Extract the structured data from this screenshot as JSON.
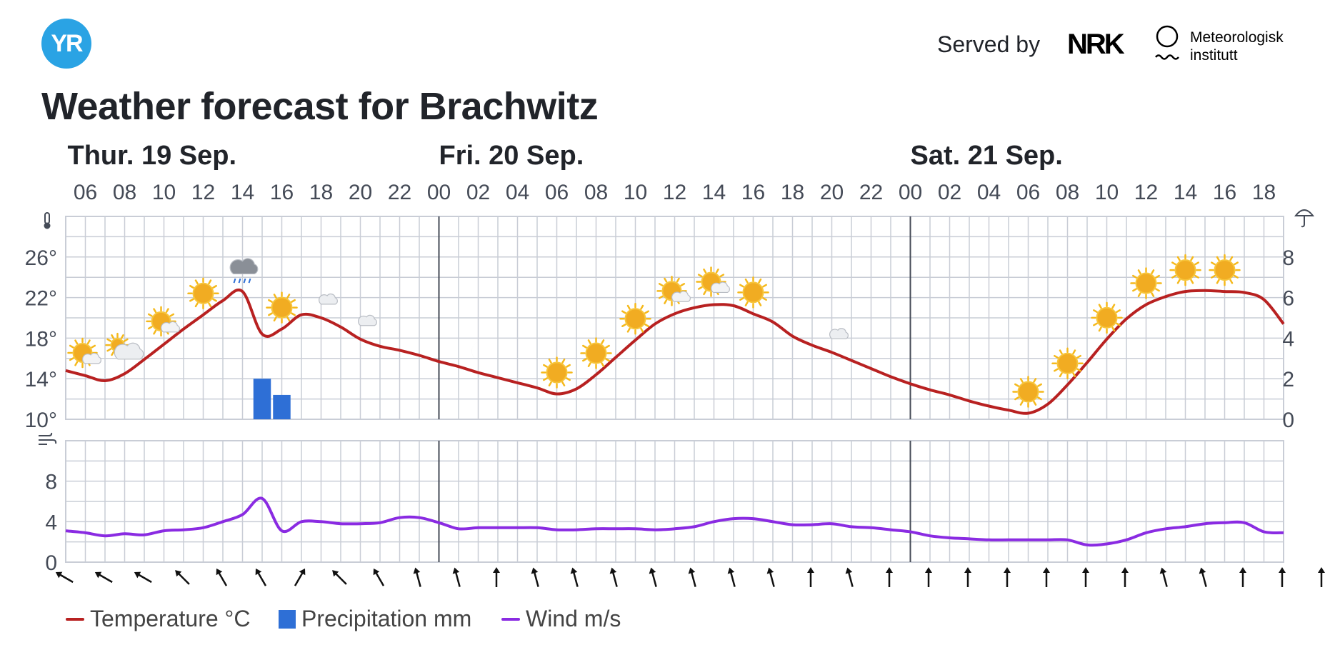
{
  "header": {
    "logo_text": "YR",
    "served_by": "Served by",
    "nrk_logo_text": "NRK",
    "met_logo_text": "Meteorologisk institutt",
    "met_line1": "Meteorologisk",
    "met_line2": "institutt",
    "title": "Weather forecast for Brachwitz"
  },
  "colors": {
    "temperature": "#b82121",
    "precipitation": "#2e6fd6",
    "wind": "#8a2be2",
    "grid": "#c9cdd6",
    "day_divider": "#454b57",
    "label": "#454b57",
    "logo": "#2aa3e4"
  },
  "legend": {
    "temperature": "Temperature °C",
    "precipitation": "Precipitation mm",
    "wind": "Wind m/s"
  },
  "chart_data": {
    "type": "line",
    "days": [
      {
        "label": "Thur. 19 Sep.",
        "start_hour_index": 0
      },
      {
        "label": "Fri. 20 Sep.",
        "start_hour_index": 19
      },
      {
        "label": "Sat. 21 Sep.",
        "start_hour_index": 43
      }
    ],
    "hours": [
      "05",
      "06",
      "07",
      "08",
      "09",
      "10",
      "11",
      "12",
      "13",
      "14",
      "15",
      "16",
      "17",
      "18",
      "19",
      "20",
      "21",
      "22",
      "23",
      "00",
      "01",
      "02",
      "03",
      "04",
      "05",
      "06",
      "07",
      "08",
      "09",
      "10",
      "11",
      "12",
      "13",
      "14",
      "15",
      "16",
      "17",
      "18",
      "19",
      "20",
      "21",
      "22",
      "23",
      "00",
      "01",
      "02",
      "03",
      "04",
      "05",
      "06",
      "07",
      "08",
      "09",
      "10",
      "11",
      "12",
      "13",
      "14",
      "15",
      "16",
      "17",
      "18",
      "19"
    ],
    "hour_tick_labels": [
      "06",
      "08",
      "10",
      "12",
      "14",
      "16",
      "18",
      "20",
      "22",
      "00",
      "02",
      "04",
      "06",
      "08",
      "10",
      "12",
      "14",
      "16",
      "18",
      "20",
      "22",
      "00",
      "02",
      "04",
      "06",
      "08",
      "10",
      "12",
      "14",
      "16",
      "18"
    ],
    "temperature_axis": {
      "min": 10,
      "max": 30,
      "ticks": [
        10,
        14,
        18,
        22,
        26
      ],
      "unit": "°"
    },
    "precipitation_axis": {
      "min": 0,
      "max": 10,
      "ticks": [
        0,
        2,
        4,
        6,
        8
      ]
    },
    "wind_axis": {
      "min": 0,
      "max": 12,
      "ticks": [
        0,
        4,
        8
      ]
    },
    "series": [
      {
        "name": "Temperature °C",
        "values": [
          14.8,
          14.3,
          13.8,
          14.5,
          15.9,
          17.4,
          18.9,
          20.3,
          21.7,
          22.6,
          18.4,
          18.9,
          20.3,
          20.0,
          19.1,
          17.9,
          17.2,
          16.8,
          16.3,
          15.7,
          15.2,
          14.6,
          14.1,
          13.6,
          13.1,
          12.5,
          13.0,
          14.4,
          16.1,
          17.8,
          19.4,
          20.4,
          21.0,
          21.3,
          21.2,
          20.4,
          19.6,
          18.2,
          17.3,
          16.6,
          15.8,
          15.0,
          14.2,
          13.5,
          12.9,
          12.4,
          11.8,
          11.3,
          10.9,
          10.6,
          11.5,
          13.4,
          15.6,
          17.9,
          19.9,
          21.3,
          22.1,
          22.6,
          22.7,
          22.6,
          22.5,
          21.8,
          19.4
        ]
      },
      {
        "name": "Precipitation mm",
        "values": [
          0,
          0,
          0,
          0,
          0,
          0,
          0,
          0,
          0,
          0,
          2.0,
          1.2,
          0,
          0,
          0,
          0,
          0,
          0,
          0,
          0,
          0,
          0,
          0,
          0,
          0,
          0,
          0,
          0,
          0,
          0,
          0,
          0,
          0,
          0,
          0,
          0,
          0,
          0,
          0,
          0,
          0,
          0,
          0,
          0,
          0,
          0,
          0,
          0,
          0,
          0,
          0,
          0,
          0,
          0,
          0,
          0,
          0,
          0,
          0,
          0,
          0,
          0,
          0
        ]
      },
      {
        "name": "Wind m/s",
        "values": [
          3.1,
          2.9,
          2.6,
          2.8,
          2.7,
          3.1,
          3.2,
          3.4,
          4.0,
          4.7,
          6.3,
          3.1,
          4.0,
          4.0,
          3.8,
          3.8,
          3.9,
          4.4,
          4.4,
          3.9,
          3.3,
          3.4,
          3.4,
          3.4,
          3.4,
          3.2,
          3.2,
          3.3,
          3.3,
          3.3,
          3.2,
          3.3,
          3.5,
          4.0,
          4.3,
          4.3,
          4.0,
          3.7,
          3.7,
          3.8,
          3.5,
          3.4,
          3.2,
          3.0,
          2.6,
          2.4,
          2.3,
          2.2,
          2.2,
          2.2,
          2.2,
          2.2,
          1.7,
          1.8,
          2.2,
          2.9,
          3.3,
          3.5,
          3.8,
          3.9,
          3.9,
          3.0,
          2.9
        ]
      }
    ],
    "weather_symbols": [
      {
        "hour_index": 1,
        "icon": "partly-cloudy-day-icon"
      },
      {
        "hour_index": 3,
        "icon": "mostly-cloudy-day-icon"
      },
      {
        "hour_index": 5,
        "icon": "partly-cloudy-day-icon"
      },
      {
        "hour_index": 7,
        "icon": "clear-sky-day-icon"
      },
      {
        "hour_index": 9,
        "icon": "rain-cloud-icon"
      },
      {
        "hour_index": 11,
        "icon": "clear-sky-day-icon"
      },
      {
        "hour_index": 13,
        "icon": "partly-cloudy-night-icon"
      },
      {
        "hour_index": 15,
        "icon": "partly-cloudy-night-icon"
      },
      {
        "hour_index": 17,
        "icon": "clear-sky-night-icon"
      },
      {
        "hour_index": 19,
        "icon": "clear-sky-night-icon"
      },
      {
        "hour_index": 21,
        "icon": "clear-sky-night-icon"
      },
      {
        "hour_index": 23,
        "icon": "clear-sky-night-icon"
      },
      {
        "hour_index": 25,
        "icon": "clear-sky-day-icon"
      },
      {
        "hour_index": 27,
        "icon": "clear-sky-day-icon"
      },
      {
        "hour_index": 29,
        "icon": "clear-sky-day-icon"
      },
      {
        "hour_index": 31,
        "icon": "partly-cloudy-day-icon"
      },
      {
        "hour_index": 33,
        "icon": "partly-cloudy-day-icon"
      },
      {
        "hour_index": 35,
        "icon": "clear-sky-day-icon"
      },
      {
        "hour_index": 37,
        "icon": "clear-sky-night-icon"
      },
      {
        "hour_index": 39,
        "icon": "partly-cloudy-night-icon"
      },
      {
        "hour_index": 41,
        "icon": "clear-sky-night-icon"
      },
      {
        "hour_index": 43,
        "icon": "clear-sky-night-icon"
      },
      {
        "hour_index": 45,
        "icon": "clear-sky-night-icon"
      },
      {
        "hour_index": 47,
        "icon": "clear-sky-night-icon"
      },
      {
        "hour_index": 49,
        "icon": "clear-sky-day-icon"
      },
      {
        "hour_index": 51,
        "icon": "clear-sky-day-icon"
      },
      {
        "hour_index": 53,
        "icon": "clear-sky-day-icon"
      },
      {
        "hour_index": 55,
        "icon": "clear-sky-day-icon"
      },
      {
        "hour_index": 57,
        "icon": "clear-sky-day-icon"
      },
      {
        "hour_index": 59,
        "icon": "clear-sky-day-icon"
      }
    ],
    "wind_direction_deg": [
      30,
      30,
      30,
      45,
      60,
      60,
      120,
      45,
      60,
      75,
      75,
      90,
      75,
      75,
      75,
      75,
      75,
      75,
      75,
      90,
      75,
      90,
      90,
      90,
      90,
      90,
      90,
      90,
      75,
      75,
      90,
      90,
      90,
      105,
      105,
      105,
      90
    ],
    "grid": true,
    "legend_position": "bottom-left"
  }
}
